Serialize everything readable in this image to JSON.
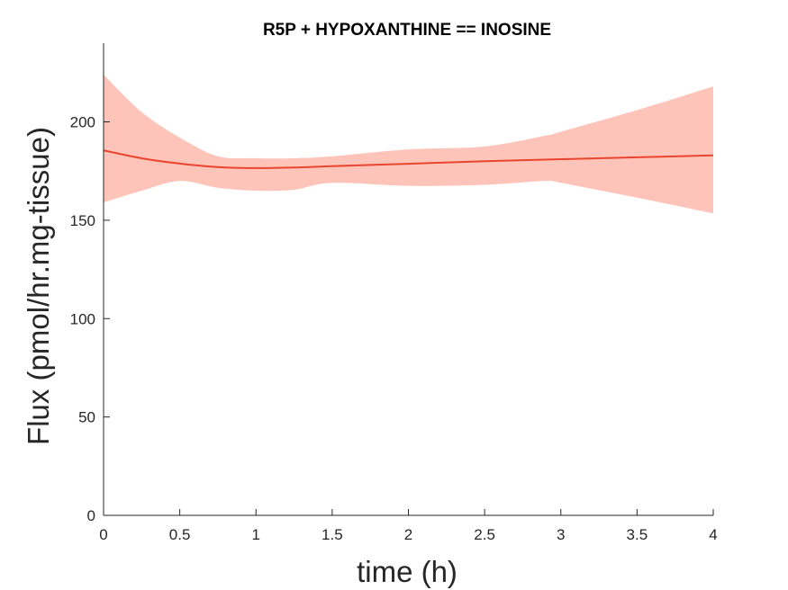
{
  "chart_data": {
    "type": "line",
    "title": "R5P + HYPOXANTHINE == INOSINE",
    "xlabel": "time (h)",
    "ylabel": "Flux (pmol/hr.mg-tissue)",
    "xlim": [
      0,
      4
    ],
    "ylim": [
      0,
      240
    ],
    "xticks": [
      0,
      0.5,
      1,
      1.5,
      2,
      2.5,
      3,
      3.5,
      4
    ],
    "xtick_labels": [
      "0",
      "0.5",
      "1",
      "1.5",
      "2",
      "2.5",
      "3",
      "3.5",
      "4"
    ],
    "yticks": [
      0,
      50,
      100,
      150,
      200
    ],
    "ytick_labels": [
      "0",
      "50",
      "100",
      "150",
      "200"
    ],
    "grid": false,
    "legend": "none",
    "line_color": "#e8452e",
    "band_color": "#ffc4b9",
    "series": [
      {
        "x": [
          0,
          0.25,
          0.5,
          0.75,
          1,
          1.25,
          1.5,
          2,
          2.5,
          3,
          3.5,
          4
        ],
        "values": [
          185.5,
          181.5,
          178.8,
          177,
          176.5,
          176.8,
          177.5,
          178.7,
          180,
          181,
          182,
          183
        ]
      }
    ],
    "band": {
      "x": [
        0,
        0.25,
        0.5,
        0.75,
        1,
        1.25,
        1.5,
        2,
        2.5,
        2.9,
        3,
        3.5,
        4
      ],
      "upper": [
        224,
        205,
        192,
        182.5,
        181.5,
        181.5,
        182.5,
        186,
        187.5,
        193,
        195,
        206,
        218
      ],
      "lower": [
        159,
        165,
        170,
        166.5,
        165,
        165.5,
        169,
        167.5,
        168,
        170,
        169,
        161.5,
        153.5
      ]
    }
  }
}
